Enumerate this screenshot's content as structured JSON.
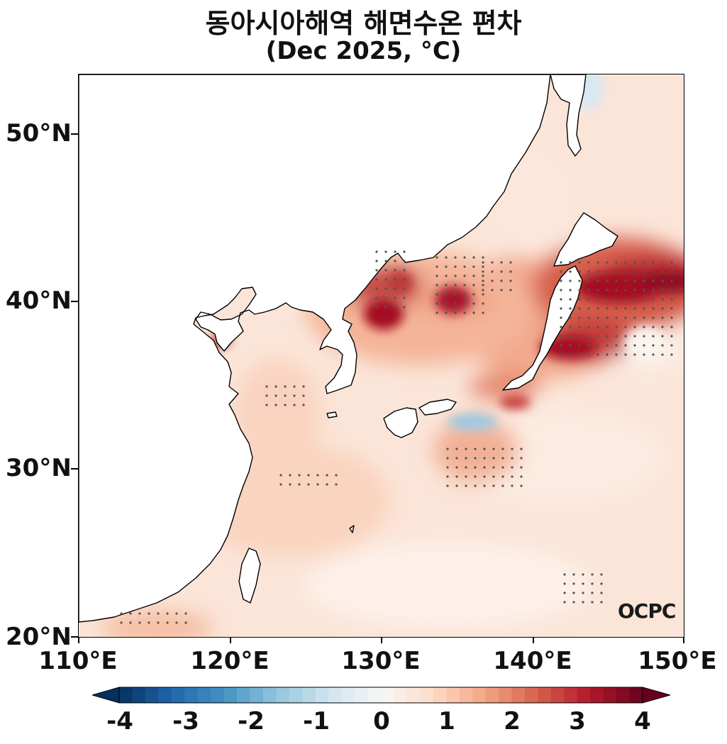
{
  "title": {
    "line1": "동아시아해역 해면수온 편차",
    "line2": "(Dec 2025, °C)"
  },
  "map": {
    "lon_range": [
      110,
      150
    ],
    "lat_range": [
      20,
      53.5
    ],
    "projection": "PlateCarree",
    "variable": "SST anomaly",
    "stippling": "significant anomalies marked with dots",
    "lat_labels": [
      "50°N",
      "40°N",
      "30°N",
      "20°N"
    ],
    "lon_labels": [
      "110°E",
      "120°E",
      "130°E",
      "140°E",
      "150°E"
    ],
    "logo_text": "OCPC"
  },
  "colorbar": {
    "colormap": "RdBu_r",
    "range": [
      -4,
      4
    ],
    "ticks": [
      "-4",
      "-3",
      "-2",
      "-1",
      "0",
      "1",
      "2",
      "3",
      "4"
    ],
    "extend": "both"
  },
  "colors": {
    "land": "#ffffff",
    "ocean_base": "#fbe4d7",
    "strong_warm": "#a50f23",
    "cool": "#9ec9e2"
  }
}
